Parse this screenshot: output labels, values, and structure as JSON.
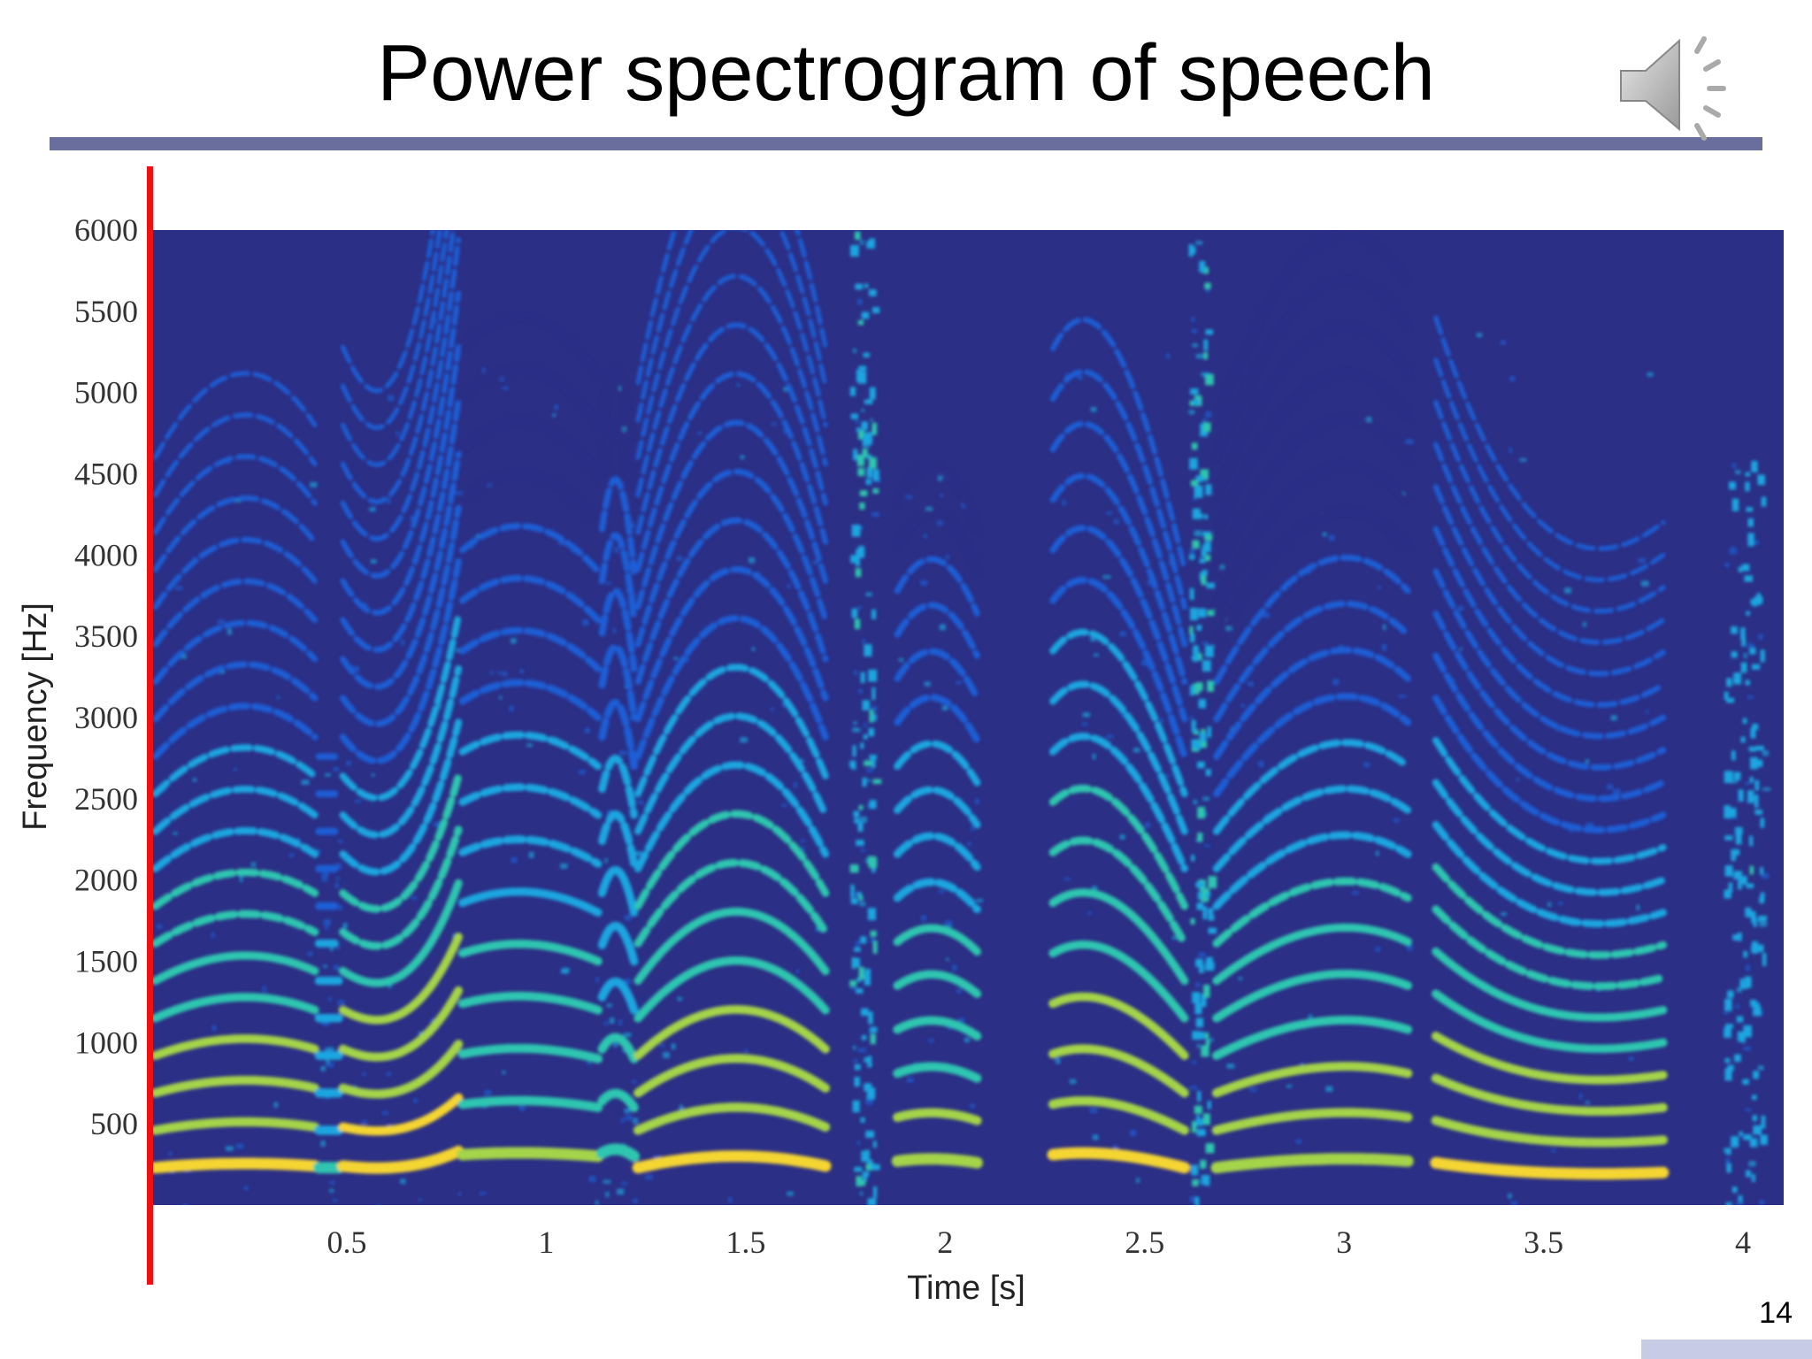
{
  "slide": {
    "title": "Power spectrogram of speech",
    "page_number": "14",
    "rule_color": "#6a6e9c",
    "corner_bar_color": "#c8cbe6",
    "cursor_color": "#ee1111"
  },
  "icons": {
    "speaker": "speaker-volume-icon"
  },
  "chart_data": {
    "type": "heatmap",
    "title": "",
    "xlabel": "Time [s]",
    "ylabel": "Frequency [Hz]",
    "xlim": [
      0,
      4.1
    ],
    "ylim": [
      0,
      6000
    ],
    "x_ticks": [
      0.5,
      1,
      1.5,
      2,
      2.5,
      3,
      3.5,
      4
    ],
    "x_tick_labels": [
      "0.5",
      "1",
      "1.5",
      "2",
      "2.5",
      "3",
      "3.5",
      "4"
    ],
    "y_ticks": [
      500,
      1000,
      1500,
      2000,
      2500,
      3000,
      3500,
      4000,
      4500,
      5000,
      5500,
      6000
    ],
    "y_tick_labels": [
      "500",
      "1000",
      "1500",
      "2000",
      "2500",
      "3000",
      "3500",
      "4000",
      "4500",
      "5000",
      "5500",
      "6000"
    ],
    "colormap": [
      "#2c2f86",
      "#1f5fd6",
      "#1aa6e0",
      "#2fc6b0",
      "#a4d44a",
      "#f5d533"
    ],
    "background_color": "#2c2f86",
    "segments": [
      {
        "t_start": 0.02,
        "t_end": 0.42,
        "f0": 230,
        "f0_end": 240,
        "curve": 0.25,
        "intensity": 0.9,
        "max_freq": 4800
      },
      {
        "t_start": 0.43,
        "t_end": 0.48,
        "f0": 230,
        "f0_end": 230,
        "curve": 0.0,
        "intensity": 0.5,
        "max_freq": 2800
      },
      {
        "t_start": 0.49,
        "t_end": 0.78,
        "f0": 240,
        "f0_end": 330,
        "curve": -0.5,
        "intensity": 0.95,
        "max_freq": 5500
      },
      {
        "t_start": 0.79,
        "t_end": 1.13,
        "f0": 310,
        "f0_end": 300,
        "curve": 0.15,
        "intensity": 0.7,
        "max_freq": 5300
      },
      {
        "t_start": 1.14,
        "t_end": 1.22,
        "f0": 320,
        "f0_end": 300,
        "curve": 0.3,
        "intensity": 0.55,
        "max_freq": 5100
      },
      {
        "t_start": 1.23,
        "t_end": 1.7,
        "f0": 230,
        "f0_end": 240,
        "curve": 0.8,
        "intensity": 0.9,
        "max_freq": 5200
      },
      {
        "t_start": 1.76,
        "t_end": 1.82,
        "f0": 0,
        "f0_end": 0,
        "curve": 0,
        "intensity": 0.45,
        "max_freq": 6000
      },
      {
        "t_start": 1.88,
        "t_end": 2.08,
        "f0": 270,
        "f0_end": 260,
        "curve": 0.2,
        "intensity": 0.75,
        "max_freq": 4500
      },
      {
        "t_start": 2.27,
        "t_end": 2.6,
        "f0": 310,
        "f0_end": 230,
        "curve": 0.4,
        "intensity": 0.9,
        "max_freq": 5400
      },
      {
        "t_start": 2.61,
        "t_end": 2.66,
        "f0": 0,
        "f0_end": 0,
        "curve": 0,
        "intensity": 0.5,
        "max_freq": 6000
      },
      {
        "t_start": 2.68,
        "t_end": 3.16,
        "f0": 230,
        "f0_end": 270,
        "curve": 0.35,
        "intensity": 0.8,
        "max_freq": 5000
      },
      {
        "t_start": 3.23,
        "t_end": 3.8,
        "f0": 260,
        "f0_end": 200,
        "curve": -0.4,
        "intensity": 0.9,
        "max_freq": 5500
      },
      {
        "t_start": 3.95,
        "t_end": 4.05,
        "f0": 0,
        "f0_end": 0,
        "curve": 0,
        "intensity": 0.35,
        "max_freq": 4600
      }
    ]
  }
}
